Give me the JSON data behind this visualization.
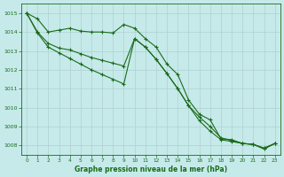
{
  "bg_color": "#c6eaea",
  "grid_color": "#afd0d0",
  "line_color": "#1a6b1a",
  "title": "Graphe pression niveau de la mer (hPa)",
  "xlim": [
    -0.5,
    23.5
  ],
  "ylim": [
    1007.5,
    1015.5
  ],
  "yticks": [
    1008,
    1009,
    1010,
    1011,
    1012,
    1013,
    1014,
    1015
  ],
  "xticks": [
    0,
    1,
    2,
    3,
    4,
    5,
    6,
    7,
    8,
    9,
    10,
    11,
    12,
    13,
    14,
    15,
    16,
    17,
    18,
    19,
    20,
    21,
    22,
    23
  ],
  "top_line": [
    1015.0,
    1014.7,
    1014.0,
    1014.1,
    1014.2,
    1014.05,
    1014.0,
    1014.0,
    1013.95,
    1014.4,
    1014.2,
    1013.65,
    1013.2,
    1012.3,
    1011.75,
    1010.4,
    1009.65,
    1009.35,
    1008.35,
    1008.3,
    1008.1,
    1008.05,
    1007.8,
    1008.1
  ],
  "mid_line": [
    1015.0,
    1014.0,
    1013.4,
    1013.15,
    1013.05,
    1012.85,
    1012.65,
    1012.5,
    1012.35,
    1012.2,
    1013.65,
    1013.2,
    1012.55,
    1011.8,
    1011.0,
    1010.1,
    1009.5,
    1009.0,
    1008.4,
    1008.25,
    1008.1,
    1008.05,
    1007.85,
    1008.1
  ],
  "bot_line": [
    1015.0,
    1013.95,
    1013.2,
    1012.9,
    1012.6,
    1012.3,
    1012.0,
    1011.75,
    1011.5,
    1011.25,
    1013.65,
    1013.2,
    1012.55,
    1011.8,
    1011.0,
    1010.1,
    1009.3,
    1008.75,
    1008.3,
    1008.2,
    1008.1,
    1008.05,
    1007.85,
    1008.1
  ]
}
